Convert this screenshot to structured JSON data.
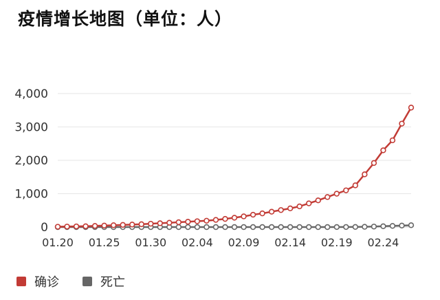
{
  "chart_data": {
    "type": "line",
    "title": "疫情增长地图（单位：人）",
    "xlabel": "",
    "ylabel": "",
    "ylim": [
      0,
      4000
    ],
    "yticks": [
      "0",
      "1,000",
      "2,000",
      "3,000",
      "4,000"
    ],
    "grid": true,
    "legend_position": "bottom-left",
    "x": [
      "01.20",
      "01.21",
      "01.22",
      "01.23",
      "01.24",
      "01.25",
      "01.26",
      "01.27",
      "01.28",
      "01.29",
      "01.30",
      "01.31",
      "02.01",
      "02.02",
      "02.03",
      "02.04",
      "02.05",
      "02.06",
      "02.07",
      "02.08",
      "02.09",
      "02.10",
      "02.11",
      "02.12",
      "02.13",
      "02.14",
      "02.15",
      "02.16",
      "02.17",
      "02.18",
      "02.19",
      "02.20",
      "02.21",
      "02.22",
      "02.23",
      "02.24",
      "02.25",
      "02.26",
      "02.27"
    ],
    "xtick_labels": [
      "01.20",
      "01.25",
      "01.30",
      "02.04",
      "02.09",
      "02.14",
      "02.19",
      "02.24"
    ],
    "series": [
      {
        "name": "确诊",
        "color": "#c23b35",
        "values": [
          10,
          15,
          20,
          25,
          35,
          45,
          55,
          65,
          75,
          85,
          100,
          115,
          130,
          145,
          160,
          175,
          190,
          215,
          245,
          280,
          320,
          370,
          410,
          460,
          510,
          560,
          620,
          710,
          800,
          900,
          1000,
          1100,
          1250,
          1580,
          1920,
          2300,
          2600,
          3100,
          3580
        ]
      },
      {
        "name": "死亡",
        "color": "#666666",
        "values": [
          0,
          0,
          0,
          0,
          0,
          0,
          0,
          0,
          0,
          0,
          0,
          0,
          0,
          0,
          0,
          0,
          0,
          0,
          0,
          0,
          0,
          0,
          0,
          0,
          0,
          0,
          0,
          0,
          0,
          0,
          1,
          2,
          4,
          8,
          15,
          25,
          35,
          45,
          55
        ]
      }
    ]
  }
}
